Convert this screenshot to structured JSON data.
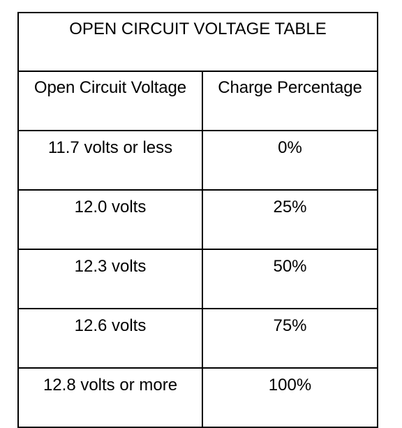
{
  "chart_data": {
    "type": "table",
    "title": "OPEN CIRCUIT VOLTAGE TABLE",
    "columns": [
      "Open Circuit Voltage",
      "Charge Percentage"
    ],
    "rows": [
      [
        "11.7 volts or less",
        "0%"
      ],
      [
        "12.0 volts",
        "25%"
      ],
      [
        "12.3 volts",
        "50%"
      ],
      [
        "12.6 volts",
        "75%"
      ],
      [
        "12.8 volts or more",
        "100%"
      ]
    ],
    "voltage_values": [
      11.7,
      12.0,
      12.3,
      12.6,
      12.8
    ],
    "charge_percent_values": [
      0,
      25,
      50,
      75,
      100
    ]
  }
}
